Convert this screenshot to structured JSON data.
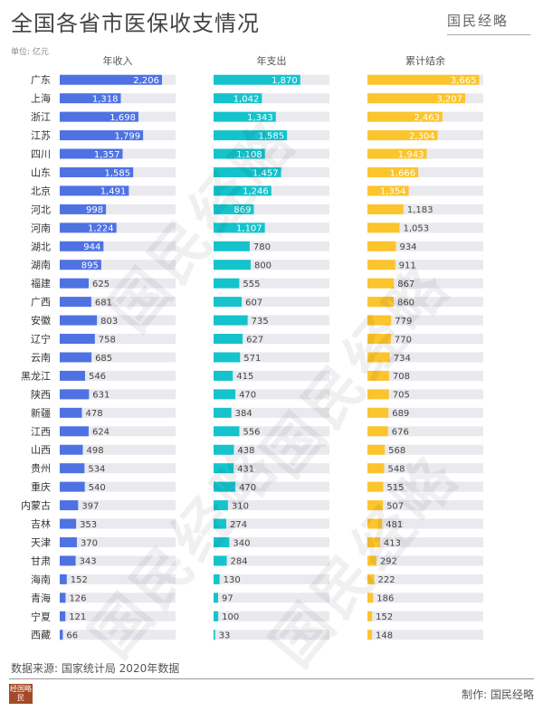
{
  "title": "全国各省市医保收支情况",
  "brand": "国民经略",
  "unit": "单位: 亿元",
  "source": "数据来源: 国家统计局 2020年数据",
  "maker": "制作: 国民经略",
  "seal_text": [
    "经",
    "国",
    "略",
    "民"
  ],
  "colors": {
    "income": "#4f72e3",
    "expense": "#15c3cc",
    "balance": "#fcc42d",
    "track": "#e9e9ee"
  },
  "chart_data": {
    "type": "bar",
    "categories": [
      "广东",
      "上海",
      "浙江",
      "江苏",
      "四川",
      "山东",
      "北京",
      "河北",
      "河南",
      "湖北",
      "湖南",
      "福建",
      "广西",
      "安徽",
      "辽宁",
      "云南",
      "黑龙江",
      "陕西",
      "新疆",
      "江西",
      "山西",
      "贵州",
      "重庆",
      "内蒙古",
      "吉林",
      "天津",
      "甘肃",
      "海南",
      "青海",
      "宁夏",
      "西藏"
    ],
    "series": [
      {
        "name": "年收入",
        "values": [
          2206,
          1318,
          1698,
          1799,
          1357,
          1585,
          1491,
          998,
          1224,
          944,
          895,
          625,
          681,
          803,
          758,
          685,
          546,
          631,
          478,
          624,
          498,
          534,
          540,
          397,
          353,
          370,
          343,
          152,
          126,
          121,
          66
        ]
      },
      {
        "name": "年支出",
        "values": [
          1870,
          1042,
          1343,
          1585,
          1108,
          1457,
          1246,
          869,
          1107,
          780,
          800,
          555,
          607,
          735,
          627,
          571,
          415,
          470,
          384,
          556,
          438,
          431,
          470,
          310,
          274,
          340,
          284,
          130,
          97,
          100,
          33
        ]
      },
      {
        "name": "累计结余",
        "values": [
          3665,
          3207,
          2463,
          2304,
          1943,
          1666,
          1354,
          1183,
          1053,
          934,
          911,
          867,
          860,
          779,
          770,
          734,
          708,
          705,
          689,
          676,
          568,
          548,
          515,
          507,
          481,
          413,
          292,
          222,
          186,
          152,
          148
        ]
      }
    ],
    "labels": [
      [
        "2,206",
        "1,318",
        "1,698",
        "1,799",
        "1,357",
        "1,585",
        "1,491",
        "998",
        "1,224",
        "944",
        "895",
        "625",
        "681",
        "803",
        "758",
        "685",
        "546",
        "631",
        "478",
        "624",
        "498",
        "534",
        "540",
        "397",
        "353",
        "370",
        "343",
        "152",
        "126",
        "121",
        "66"
      ],
      [
        "1,870",
        "1,042",
        "1,343",
        "1,585",
        "1,108",
        "1,457",
        "1,246",
        "869",
        "1,107",
        "780",
        "800",
        "555",
        "607",
        "735",
        "627",
        "571",
        "415",
        "470",
        "384",
        "556",
        "438",
        "431",
        "470",
        "310",
        "274",
        "340",
        "284",
        "130",
        "97",
        "100",
        "33"
      ],
      [
        "3,665",
        "3,207",
        "2,463",
        "2,304",
        "1,943",
        "1,666",
        "1,354",
        "1,183",
        "1,053",
        "934",
        "911",
        "867",
        "860",
        "779",
        "770",
        "734",
        "708",
        "705",
        "689",
        "676",
        "568",
        "548",
        "515",
        "507",
        "481",
        "413",
        "292",
        "222",
        "186",
        "152",
        "148"
      ]
    ],
    "xlim": [
      [
        0,
        2500
      ],
      [
        0,
        2500
      ],
      [
        0,
        3800
      ]
    ]
  }
}
